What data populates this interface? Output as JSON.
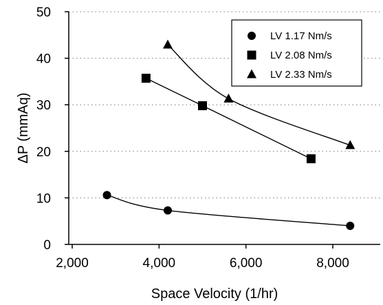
{
  "chart_data": {
    "type": "scatter",
    "xlabel": "Space Velocity (1/hr)",
    "ylabel": "ΔP (mmAq)",
    "xlim": [
      2000,
      8800
    ],
    "ylim": [
      0,
      50
    ],
    "xticks": [
      2000,
      4000,
      6000,
      8000
    ],
    "xtick_labels": [
      "2,000",
      "4,000",
      "6,000",
      "8,000"
    ],
    "yticks": [
      0,
      10,
      20,
      30,
      40,
      50
    ],
    "ytick_labels": [
      "0",
      "10",
      "20",
      "30",
      "40",
      "50"
    ],
    "grid": "horizontal dotted",
    "legend_position": "top-right",
    "series": [
      {
        "name": "LV  1.17 Nm/s",
        "marker": "circle",
        "line": "smooth",
        "points": [
          [
            2800,
            10.6
          ],
          [
            4200,
            7.3
          ],
          [
            8400,
            4.0
          ]
        ]
      },
      {
        "name": "LV  2.08 Nm/s",
        "marker": "square",
        "line": "smooth",
        "points": [
          [
            3700,
            35.7
          ],
          [
            5000,
            29.8
          ],
          [
            7500,
            18.4
          ]
        ]
      },
      {
        "name": "LV  2.33 Nm/s",
        "marker": "triangle",
        "line": "smooth",
        "points": [
          [
            4200,
            42.9
          ],
          [
            5600,
            31.3
          ],
          [
            8400,
            21.3
          ]
        ]
      }
    ]
  }
}
